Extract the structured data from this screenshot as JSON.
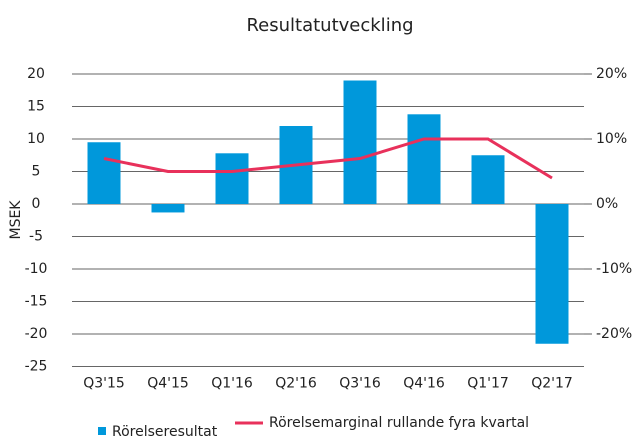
{
  "chart_data": {
    "type": "bar_line",
    "title": "Resultatutveckling",
    "y_label": "MSEK",
    "categories": [
      "Q3'15",
      "Q4'15",
      "Q1'16",
      "Q2'16",
      "Q3'16",
      "Q4'16",
      "Q1'17",
      "Q2'17"
    ],
    "series": [
      {
        "name": "Rörelseresultat",
        "type": "bar",
        "color": "#0098db",
        "values": [
          9.5,
          -1.3,
          7.8,
          12,
          19,
          13.8,
          7.5,
          -21.5
        ]
      },
      {
        "name": "Rörelsemarginal rullande fyra kvartal",
        "type": "line",
        "axis": "y2",
        "color": "#e8315b",
        "values": [
          7,
          5,
          5,
          6,
          7,
          10,
          10,
          4
        ]
      }
    ],
    "ylim": [
      -25,
      20
    ],
    "yticks": [
      -25,
      -20,
      -15,
      -10,
      -5,
      0,
      5,
      10,
      15,
      20
    ],
    "y2lim": [
      -25,
      20
    ],
    "y2ticks": [
      {
        "value": -20,
        "label": "-20%"
      },
      {
        "value": -10,
        "label": "-10%"
      },
      {
        "value": 0,
        "label": "0%"
      },
      {
        "value": 10,
        "label": "10%"
      },
      {
        "value": 20,
        "label": "20%"
      }
    ],
    "grid": true,
    "legend": "bottom"
  }
}
